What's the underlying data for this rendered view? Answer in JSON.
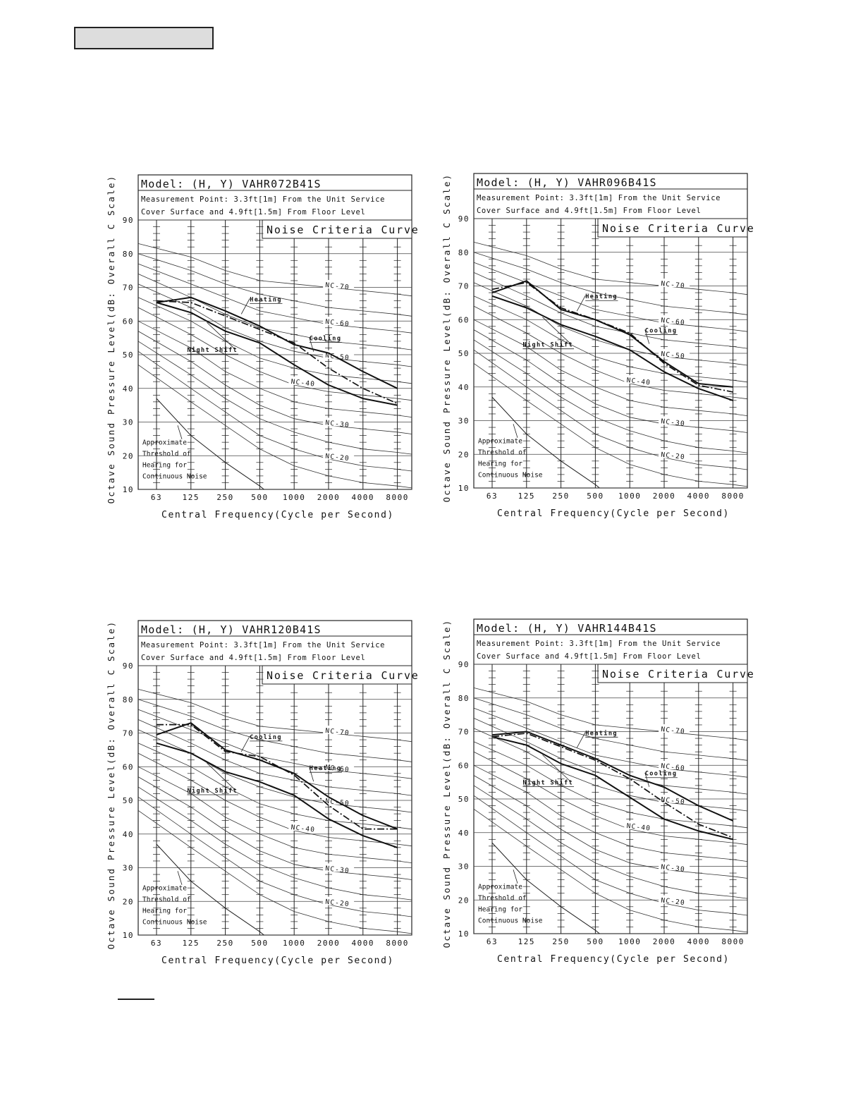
{
  "header_box": {
    "text": ""
  },
  "chart_data": [
    {
      "type": "line",
      "title": "Model: (H, Y) VAHR072B41S",
      "subtitle_lines": [
        "Measurement Point: 3.3ft[1m] From the Unit Service",
        "Cover Surface and 4.9ft[1.5m] From Floor Level"
      ],
      "legend_title": "Noise Criteria Curve",
      "xlabel": "Central Frequency(Cycle per Second)",
      "ylabel": "Octave Sound Pressure Level(dB: Overall C Scale)",
      "categories": [
        "63",
        "125",
        "250",
        "500",
        "1000",
        "2000",
        "4000",
        "8000"
      ],
      "yticks": [
        "90",
        "80",
        "70",
        "60",
        "50",
        "40",
        "30",
        "20",
        "10"
      ],
      "ylim": [
        10,
        90
      ],
      "grid": true,
      "nc_labels": [
        "NC-70",
        "NC-60",
        "NC-50",
        "NC-40",
        "NC-30",
        "NC-20"
      ],
      "threshold_label": [
        "Approximate",
        "Threshold of",
        "Hearing for",
        "Continuous Noise"
      ],
      "series": [
        {
          "name": "Heating",
          "style": "solid",
          "values": [
            65.5,
            67,
            63,
            58.5,
            53,
            50.5,
            45,
            40
          ]
        },
        {
          "name": "Cooling",
          "style": "dash-dot",
          "values": [
            66,
            65.5,
            61.5,
            57.5,
            53.5,
            46,
            40,
            35.5
          ]
        },
        {
          "name": "Night Shift",
          "style": "solid",
          "values": [
            65.5,
            62.5,
            57,
            53.5,
            47,
            41,
            37,
            35
          ]
        }
      ]
    },
    {
      "type": "line",
      "title": "Model: (H, Y) VAHR096B41S",
      "subtitle_lines": [
        "Measurement Point: 3.3ft[1m] From the Unit Service",
        "Cover Surface and 4.9ft[1.5m] From Floor Level"
      ],
      "legend_title": "Noise Criteria Curve",
      "xlabel": "Central Frequency(Cycle per Second)",
      "ylabel": "Octave Sound Pressure Level(dB: Overall C Scale)",
      "categories": [
        "63",
        "125",
        "250",
        "500",
        "1000",
        "2000",
        "4000",
        "8000"
      ],
      "yticks": [
        "90",
        "80",
        "70",
        "60",
        "50",
        "40",
        "30",
        "20",
        "10"
      ],
      "ylim": [
        10,
        90
      ],
      "grid": true,
      "nc_labels": [
        "NC-70",
        "NC-60",
        "NC-50",
        "NC-40",
        "NC-30",
        "NC-20"
      ],
      "threshold_label": [
        "Approximate",
        "Threshold of",
        "Hearing for",
        "Continuous Noise"
      ],
      "series": [
        {
          "name": "Heating",
          "style": "solid",
          "values": [
            68,
            71.5,
            63,
            60,
            55.5,
            47.5,
            41,
            40
          ]
        },
        {
          "name": "Cooling",
          "style": "dash-dot",
          "values": [
            69,
            71,
            63.5,
            60,
            56,
            47,
            40.5,
            38.5
          ]
        },
        {
          "name": "Night Shift",
          "style": "solid",
          "values": [
            67,
            63.5,
            58.5,
            55,
            51,
            44.5,
            39.5,
            36
          ]
        }
      ]
    },
    {
      "type": "line",
      "title": "Model: (H, Y) VAHR120B41S",
      "subtitle_lines": [
        "Measurement Point: 3.3ft[1m] From the Unit Service",
        "Cover Surface and 4.9ft[1.5m] From Floor Level"
      ],
      "legend_title": "Noise Criteria Curve",
      "xlabel": "Central Frequency(Cycle per Second)",
      "ylabel": "Octave Sound Pressure Level(dB: Overall C Scale)",
      "categories": [
        "63",
        "125",
        "250",
        "500",
        "1000",
        "2000",
        "4000",
        "8000"
      ],
      "yticks": [
        "90",
        "80",
        "70",
        "60",
        "50",
        "40",
        "30",
        "20",
        "10"
      ],
      "ylim": [
        10,
        90
      ],
      "grid": true,
      "nc_labels": [
        "NC-70",
        "NC-60",
        "NC-50",
        "NC-40",
        "NC-30",
        "NC-20"
      ],
      "threshold_label": [
        "Approximate",
        "Threshold of",
        "Hearing for",
        "Continuous Noise"
      ],
      "series": [
        {
          "name": "Cooling",
          "style": "dash-dot",
          "values": [
            72.5,
            72.5,
            64.5,
            63,
            57.5,
            48.5,
            41.5,
            41.5
          ]
        },
        {
          "name": "Heating",
          "style": "solid",
          "values": [
            69.5,
            73,
            65,
            62,
            58,
            51,
            45.5,
            41.5
          ]
        },
        {
          "name": "Night Shift",
          "style": "solid",
          "values": [
            67,
            64,
            58.5,
            55.5,
            51.5,
            44.5,
            39.5,
            36
          ]
        }
      ]
    },
    {
      "type": "line",
      "title": "Model: (H, Y) VAHR144B41S",
      "subtitle_lines": [
        "Measurement Point: 3.3ft[1m] From the Unit Service",
        "Cover Surface and 4.9ft[1.5m] From Floor Level"
      ],
      "legend_title": "Noise Criteria Curve",
      "xlabel": "Central Frequency(Cycle per Second)",
      "ylabel": "Octave Sound Pressure Level(dB: Overall C Scale)",
      "categories": [
        "63",
        "125",
        "250",
        "500",
        "1000",
        "2000",
        "4000",
        "8000"
      ],
      "yticks": [
        "90",
        "80",
        "70",
        "60",
        "50",
        "40",
        "30",
        "20",
        "10"
      ],
      "ylim": [
        10,
        90
      ],
      "grid": true,
      "nc_labels": [
        "NC-70",
        "NC-60",
        "NC-50",
        "NC-40",
        "NC-30",
        "NC-20"
      ],
      "threshold_label": [
        "Approximate",
        "Threshold of",
        "Hearing for",
        "Continuous Noise"
      ],
      "series": [
        {
          "name": "Heating",
          "style": "solid",
          "values": [
            69,
            70,
            66,
            62,
            57,
            53.5,
            48,
            43.5
          ]
        },
        {
          "name": "Cooling",
          "style": "dash-dot",
          "values": [
            68.5,
            69.5,
            65.5,
            61.5,
            56,
            49,
            42.5,
            38.5
          ]
        },
        {
          "name": "Night Shift",
          "style": "solid",
          "values": [
            68.5,
            66,
            60.5,
            57,
            50.5,
            44,
            40.5,
            38
          ]
        }
      ]
    }
  ]
}
